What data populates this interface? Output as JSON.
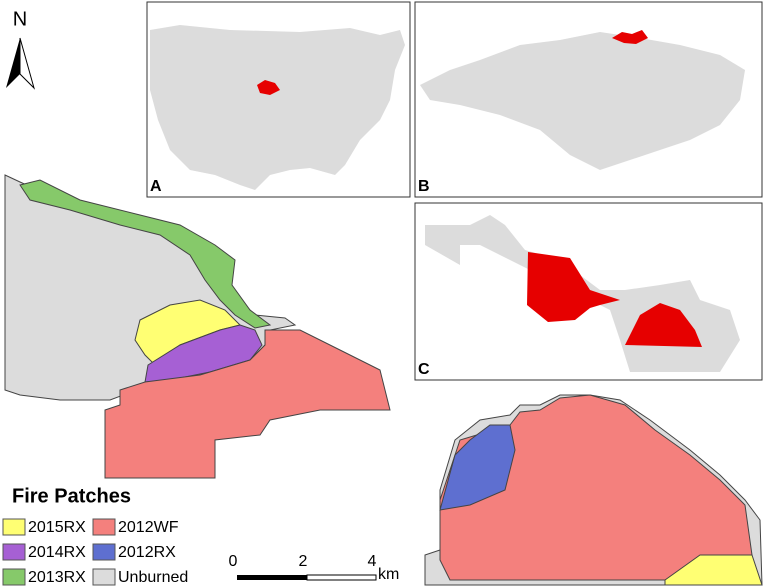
{
  "north": "N",
  "panels": [
    {
      "label": "A"
    },
    {
      "label": "B"
    },
    {
      "label": "C"
    }
  ],
  "legend": {
    "title": "Fire Patches",
    "items": [
      {
        "label": "2015RX",
        "color": "#ffff73"
      },
      {
        "label": "2012WF",
        "color": "#f4807d"
      },
      {
        "label": "2014RX",
        "color": "#a660d4"
      },
      {
        "label": "2012RX",
        "color": "#5e6fd0"
      },
      {
        "label": "2013RX",
        "color": "#86c96a"
      },
      {
        "label": "Unburned",
        "color": "#dcdcdc"
      }
    ]
  },
  "scale_bar": {
    "labels": [
      "0",
      "2",
      "4"
    ],
    "unit": "km"
  }
}
